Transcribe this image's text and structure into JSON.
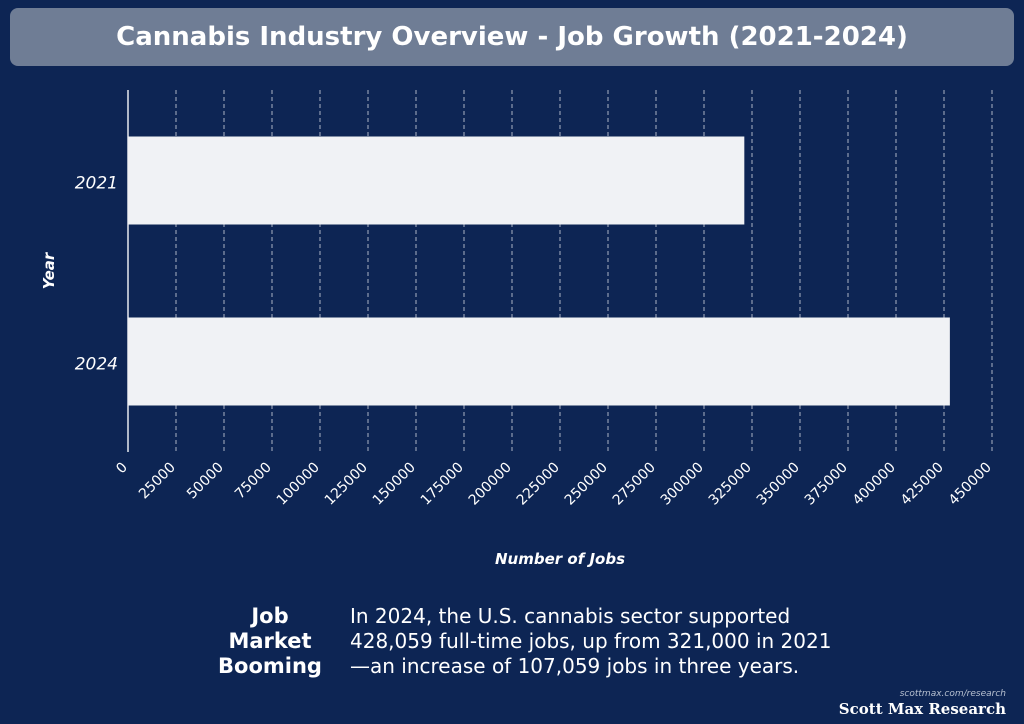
{
  "chart_data": {
    "type": "bar",
    "orientation": "horizontal",
    "title": "Cannabis Industry Overview - Job Growth (2021-2024)",
    "xlabel": "Number of Jobs",
    "ylabel": "Year",
    "categories": [
      "2021",
      "2024"
    ],
    "values": [
      321000,
      428059
    ],
    "xlim": [
      0,
      450000
    ],
    "xticks": [
      0,
      25000,
      50000,
      75000,
      100000,
      125000,
      150000,
      175000,
      200000,
      225000,
      250000,
      275000,
      300000,
      325000,
      350000,
      375000,
      400000,
      425000,
      450000
    ],
    "grid": "vertical dashed",
    "legend": "none",
    "colors": {
      "background": "#0d2554",
      "bar": "#f0f2f5",
      "grid": "#c8cdd8",
      "title_bar": "#6f7d95"
    }
  },
  "summary": {
    "heading_lines": [
      "Job",
      "Market",
      "Booming"
    ],
    "text_lines": [
      "In 2024, the U.S. cannabis sector supported",
      "428,059 full-time jobs, up from 321,000 in 2021",
      "—an increase of 107,059 jobs in three years."
    ]
  },
  "brand": {
    "url": "scottmax.com/research",
    "name": "Scott Max Research"
  }
}
